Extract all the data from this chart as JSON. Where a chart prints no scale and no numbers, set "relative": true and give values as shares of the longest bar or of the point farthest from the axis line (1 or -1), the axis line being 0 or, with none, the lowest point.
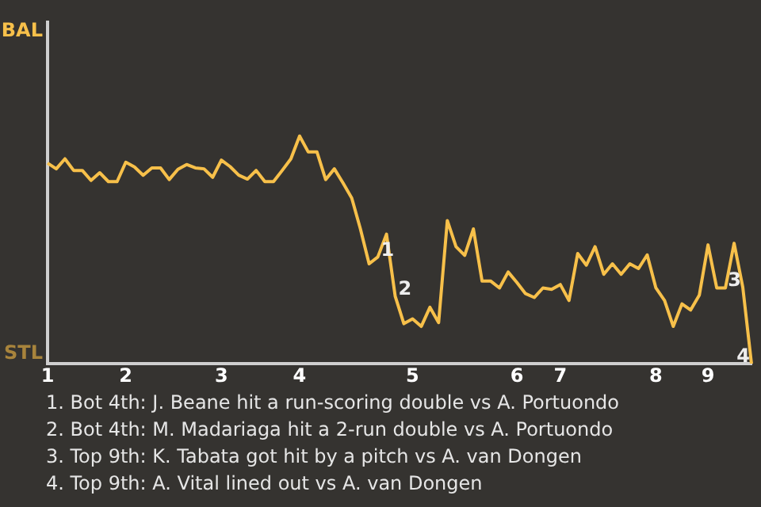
{
  "chart_data": {
    "type": "line",
    "relative": true,
    "categories": [
      "1",
      null,
      null,
      null,
      null,
      null,
      null,
      null,
      null,
      "2",
      null,
      null,
      null,
      null,
      null,
      null,
      null,
      null,
      null,
      null,
      "3",
      null,
      null,
      null,
      null,
      null,
      null,
      null,
      null,
      "4",
      null,
      null,
      null,
      null,
      null,
      null,
      null,
      null,
      null,
      null,
      null,
      null,
      "5",
      null,
      null,
      null,
      null,
      null,
      null,
      null,
      null,
      null,
      null,
      null,
      "6",
      null,
      null,
      null,
      null,
      "7",
      null,
      null,
      null,
      null,
      null,
      null,
      null,
      null,
      null,
      null,
      "8",
      null,
      null,
      null,
      null,
      null,
      "9",
      null,
      null,
      null,
      null,
      null
    ],
    "series": [
      {
        "color": "#f7c04a",
        "values": [
          0.881,
          0.856,
          0.9,
          0.849,
          0.849,
          0.805,
          0.839,
          0.8,
          0.8,
          0.885,
          0.864,
          0.828,
          0.86,
          0.86,
          0.809,
          0.854,
          0.875,
          0.86,
          0.856,
          0.819,
          0.894,
          0.866,
          0.828,
          0.811,
          0.849,
          0.8,
          0.8,
          0.849,
          0.9,
          1,
          0.93,
          0.93,
          0.809,
          0.856,
          0.794,
          0.728,
          0.592,
          0.439,
          0.469,
          0.569,
          0.297,
          0.176,
          0.197,
          0.164,
          0.248,
          0.181,
          0.629,
          0.514,
          0.476,
          0.592,
          0.363,
          0.363,
          0.333,
          0.403,
          0.357,
          0.308,
          0.291,
          0.333,
          0.327,
          0.348,
          0.278,
          0.484,
          0.433,
          0.514,
          0.393,
          0.439,
          0.393,
          0.439,
          0.418,
          0.478,
          0.333,
          0.278,
          0.164,
          0.263,
          0.236,
          0.302,
          0.522,
          0.333,
          0.333,
          0.529,
          0.336,
          0
        ]
      }
    ],
    "legend": false,
    "marker": "none",
    "line_style": "solid",
    "annotations": [
      "BAL",
      "STL",
      {
        "text": "1",
        "y": 0.469
      },
      {
        "text": "2",
        "y": 0.297
      },
      {
        "text": "3",
        "y": 0.336
      },
      {
        "text": "4",
        "y": 0
      },
      "1. Bot 4th: J. Beane hit a run-scoring double vs A. Portuondo",
      "2. Bot 4th: M. Madariaga hit a 2-run double vs A. Portuondo",
      "3. Top 9th: K. Tabata got hit by a pitch vs A. van Dongen",
      "4. Top 9th: A. Vital lined out vs A. van Dongen"
    ]
  }
}
